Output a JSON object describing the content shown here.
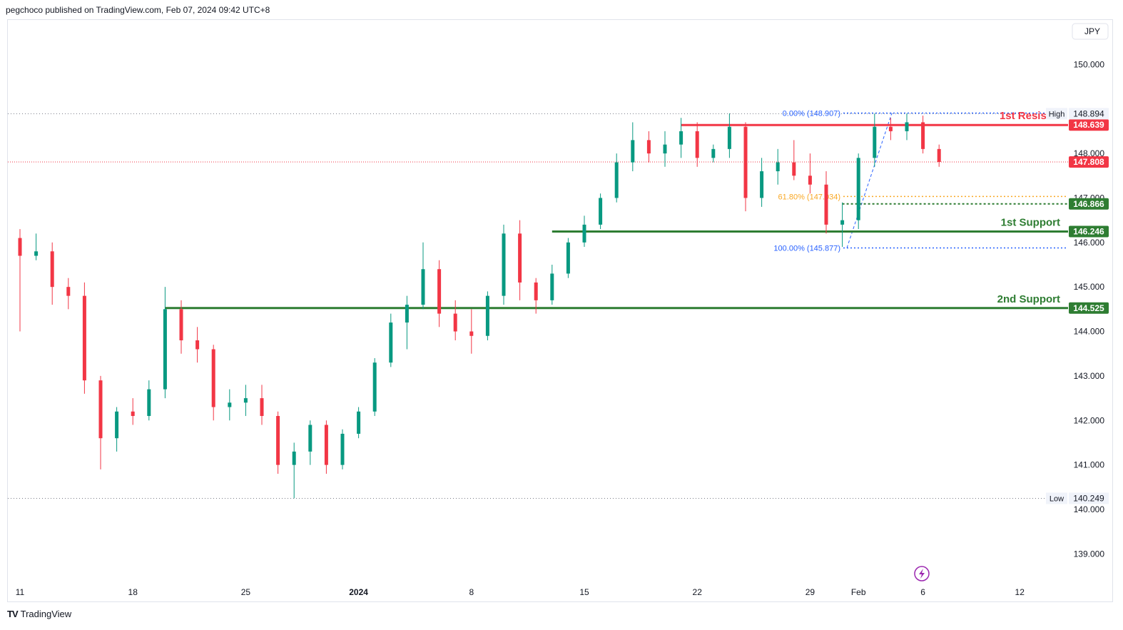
{
  "header": {
    "text": "pegchoco published on TradingView.com, Feb 07, 2024 09:42 UTC+8"
  },
  "footer": {
    "logo": "TV",
    "brand": "TradingView"
  },
  "currency": "JPY",
  "colors": {
    "up": "#089981",
    "down": "#f23645",
    "resistance": "#f23645",
    "support": "#2e7d32",
    "fib": "#2962ff",
    "fib618": "#f9a825",
    "price_label": "#f23645",
    "current_price": "#f23645"
  },
  "chart_data": {
    "type": "candlestick",
    "ylim": [
      138.3,
      151.0
    ],
    "yticks": [
      139,
      140,
      141,
      142,
      143,
      144,
      145,
      146,
      147,
      148,
      150
    ],
    "ytick_labels": [
      "139.000",
      "140.000",
      "141.000",
      "142.000",
      "143.000",
      "144.000",
      "145.000",
      "146.000",
      "147.000",
      "148.000",
      "150.000"
    ],
    "xticks": [
      {
        "label": "11",
        "day": 0,
        "bold": false
      },
      {
        "label": "18",
        "day": 7,
        "bold": false
      },
      {
        "label": "25",
        "day": 14,
        "bold": false
      },
      {
        "label": "2024",
        "day": 21,
        "bold": true
      },
      {
        "label": "8",
        "day": 28,
        "bold": false
      },
      {
        "label": "15",
        "day": 35,
        "bold": false
      },
      {
        "label": "22",
        "day": 42,
        "bold": false
      },
      {
        "label": "29",
        "day": 49,
        "bold": false
      },
      {
        "label": "Feb",
        "day": 52,
        "bold": false
      },
      {
        "label": "6",
        "day": 56,
        "bold": false
      },
      {
        "label": "12",
        "day": 62,
        "bold": false
      }
    ],
    "candles": [
      [
        146.1,
        146.3,
        144.0,
        145.7
      ],
      [
        145.7,
        146.2,
        145.6,
        145.8
      ],
      [
        145.8,
        146.0,
        144.6,
        145.0
      ],
      [
        145.0,
        145.2,
        144.5,
        144.8
      ],
      [
        144.8,
        145.1,
        142.6,
        142.9
      ],
      [
        142.9,
        143.0,
        140.9,
        141.6
      ],
      [
        141.6,
        142.3,
        141.3,
        142.2
      ],
      [
        142.2,
        142.5,
        141.9,
        142.1
      ],
      [
        142.1,
        142.9,
        142.0,
        142.7
      ],
      [
        142.7,
        145.0,
        142.5,
        144.5
      ],
      [
        144.5,
        144.7,
        143.5,
        143.8
      ],
      [
        143.8,
        144.1,
        143.3,
        143.6
      ],
      [
        143.6,
        143.7,
        142.0,
        142.3
      ],
      [
        142.3,
        142.7,
        142.0,
        142.4
      ],
      [
        142.4,
        142.8,
        142.1,
        142.5
      ],
      [
        142.5,
        142.8,
        141.9,
        142.1
      ],
      [
        142.1,
        142.2,
        140.8,
        141.0
      ],
      [
        141.0,
        141.5,
        140.25,
        141.3
      ],
      [
        141.3,
        142.0,
        141.0,
        141.9
      ],
      [
        141.9,
        142.0,
        140.8,
        141.0
      ],
      [
        141.0,
        141.8,
        140.9,
        141.7
      ],
      [
        141.7,
        142.3,
        141.6,
        142.2
      ],
      [
        142.2,
        143.4,
        142.1,
        143.3
      ],
      [
        143.3,
        144.4,
        143.2,
        144.2
      ],
      [
        144.2,
        144.8,
        143.6,
        144.6
      ],
      [
        144.6,
        146.0,
        144.5,
        145.4
      ],
      [
        145.4,
        145.6,
        144.1,
        144.4
      ],
      [
        144.4,
        144.7,
        143.8,
        144.0
      ],
      [
        144.0,
        144.5,
        143.5,
        143.9
      ],
      [
        143.9,
        144.9,
        143.8,
        144.8
      ],
      [
        144.8,
        146.4,
        144.6,
        146.2
      ],
      [
        146.2,
        146.5,
        144.7,
        145.1
      ],
      [
        145.1,
        145.2,
        144.4,
        144.7
      ],
      [
        144.7,
        145.5,
        144.6,
        145.3
      ],
      [
        145.3,
        146.1,
        145.2,
        146.0
      ],
      [
        146.0,
        146.6,
        145.9,
        146.4
      ],
      [
        146.4,
        147.1,
        146.3,
        147.0
      ],
      [
        147.0,
        148.0,
        146.9,
        147.8
      ],
      [
        147.8,
        148.7,
        147.6,
        148.3
      ],
      [
        148.3,
        148.5,
        147.8,
        148.0
      ],
      [
        148.0,
        148.5,
        147.7,
        148.2
      ],
      [
        148.2,
        148.8,
        147.9,
        148.5
      ],
      [
        148.5,
        148.7,
        147.7,
        147.9
      ],
      [
        147.9,
        148.2,
        147.8,
        148.1
      ],
      [
        148.1,
        148.9,
        147.9,
        148.6
      ],
      [
        148.6,
        148.7,
        146.7,
        147.0
      ],
      [
        147.0,
        147.9,
        146.8,
        147.6
      ],
      [
        147.6,
        148.1,
        147.3,
        147.8
      ],
      [
        147.8,
        148.3,
        147.4,
        147.5
      ],
      [
        147.5,
        148.0,
        147.1,
        147.3
      ],
      [
        147.3,
        147.6,
        146.2,
        146.4
      ],
      [
        146.4,
        146.9,
        145.9,
        146.5
      ],
      [
        146.5,
        148.0,
        146.3,
        147.9
      ],
      [
        147.9,
        148.9,
        147.7,
        148.6
      ],
      [
        148.6,
        148.8,
        148.3,
        148.5
      ],
      [
        148.5,
        148.9,
        148.3,
        148.7
      ],
      [
        148.7,
        148.85,
        148.0,
        148.1
      ],
      [
        148.1,
        148.2,
        147.7,
        147.808
      ]
    ],
    "levels": [
      {
        "label": "1st Resistar",
        "price": 148.639,
        "tag": "148.639",
        "color": "#f23645",
        "style": "solid",
        "start_day": 41
      },
      {
        "label": "1st Support",
        "price": 146.246,
        "tag": "146.246",
        "color": "#2e7d32",
        "style": "solid",
        "start_day": 33
      },
      {
        "label": "2nd Support",
        "price": 144.525,
        "tag": "144.525",
        "color": "#2e7d32",
        "style": "solid",
        "start_day": 9
      },
      {
        "label": "",
        "price": 146.866,
        "tag": "146.866",
        "color": "#2e7d32",
        "style": "dotted",
        "start_day": 51
      }
    ],
    "fib": [
      {
        "label": "0.00% (148.907)",
        "price": 148.907,
        "color": "#2962ff"
      },
      {
        "label": "61.80% (147.034)",
        "price": 147.034,
        "color": "#f9a825"
      },
      {
        "label": "100.00% (145.877)",
        "price": 145.877,
        "color": "#2962ff"
      }
    ],
    "high": {
      "label": "High",
      "value": "148.894",
      "price": 148.894
    },
    "low": {
      "label": "Low",
      "value": "140.249",
      "price": 140.249
    },
    "current": {
      "value": "147.808",
      "price": 147.808
    }
  }
}
